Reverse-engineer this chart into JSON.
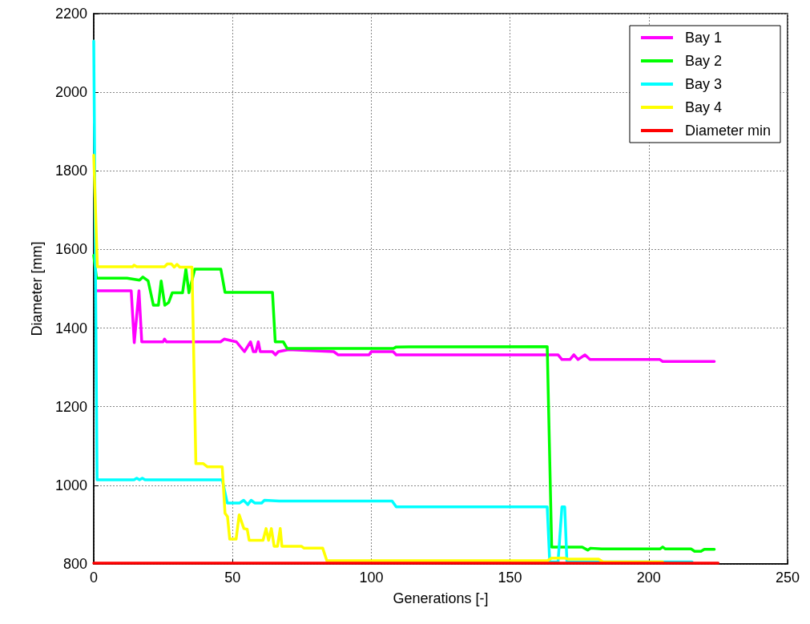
{
  "chart_data": {
    "type": "line",
    "xlabel": "Generations [-]",
    "ylabel": "Diameter [mm]",
    "xlim": [
      0,
      250
    ],
    "xticks": [
      0,
      50,
      100,
      150,
      200,
      250
    ],
    "ylim": [
      800,
      2200
    ],
    "yticks": [
      800,
      1000,
      1200,
      1400,
      1600,
      1800,
      2000,
      2200
    ],
    "grid": true,
    "legend": "top right",
    "marker": "none",
    "line_style": "solid",
    "series": [
      {
        "name": "Bay 1",
        "color": "#ff00ff",
        "x": [
          1,
          13.5,
          14.6,
          16.3,
          17.3,
          25,
          25.5,
          26.2,
          45.7,
          47,
          51.4,
          54.3,
          56.5,
          57.5,
          58.4,
          59.3,
          60,
          61,
          64.4,
          65.5,
          66.5,
          70.2,
          86.5,
          88,
          99.2,
          100,
          107.9,
          109,
          167.3,
          168.7,
          171.6,
          173,
          174.5,
          177,
          178.8,
          204,
          205,
          223.6
        ],
        "values": [
          1495,
          1495,
          1363,
          1495,
          1365,
          1365,
          1372,
          1365,
          1365,
          1372,
          1365,
          1340,
          1365,
          1340,
          1340,
          1365,
          1340,
          1340,
          1340,
          1332,
          1340,
          1345,
          1340,
          1332,
          1332,
          1340,
          1340,
          1332,
          1332,
          1320,
          1320,
          1332,
          1320,
          1332,
          1320,
          1320,
          1315,
          1315
        ]
      },
      {
        "name": "Bay 2",
        "color": "#00ff00",
        "x": [
          0,
          1,
          12,
          16.5,
          17.7,
          19.6,
          21.5,
          23.3,
          24.3,
          25.6,
          27,
          28.3,
          32,
          33.2,
          34.3,
          36.4,
          45.8,
          47.3,
          64.4,
          65.4,
          68.3,
          69.7,
          108,
          109,
          163.4,
          165,
          176,
          178,
          179,
          183,
          204,
          205,
          206,
          215.3,
          216.5,
          218.8,
          220,
          223.6
        ],
        "values": [
          1585,
          1527,
          1527,
          1522,
          1530,
          1520,
          1458,
          1458,
          1520,
          1458,
          1465,
          1490,
          1490,
          1550,
          1490,
          1550,
          1550,
          1491,
          1491,
          1365,
          1365,
          1348,
          1348,
          1352,
          1353,
          843,
          843,
          835,
          840,
          838,
          838,
          843,
          838,
          838,
          832,
          832,
          837,
          837
        ]
      },
      {
        "name": "Bay 3",
        "color": "#00ffff",
        "x": [
          0,
          1.2,
          14.5,
          15.5,
          16.5,
          17.5,
          18.5,
          19.5,
          46.3,
          48.1,
          52.6,
          54,
          55.5,
          56.7,
          58,
          60.5,
          61.5,
          66.8,
          107.5,
          109,
          163.4,
          164.3,
          167.3,
          168.7,
          169.7,
          170.5,
          215.6
        ],
        "values": [
          2130,
          1014,
          1014,
          1018,
          1014,
          1018,
          1014,
          1014,
          1014,
          955,
          955,
          962,
          951,
          962,
          955,
          955,
          962,
          960,
          960,
          945,
          945,
          805,
          805,
          945,
          945,
          805,
          805
        ]
      },
      {
        "name": "Bay 4",
        "color": "#ffff00",
        "x": [
          0,
          1.3,
          14,
          14.5,
          15.5,
          25.5,
          26.5,
          28,
          29,
          30,
          31,
          35.4,
          36.8,
          39.5,
          41,
          46.3,
          47.3,
          48.2,
          49,
          51.3,
          52.4,
          54.1,
          55.3,
          56,
          61,
          62.1,
          63,
          64,
          65,
          66.2,
          67.2,
          67.8,
          74.8,
          75.8,
          82.5,
          84,
          163.4,
          165,
          169.7,
          171,
          182,
          183.5,
          205
        ],
        "values": [
          1840,
          1556,
          1556,
          1560,
          1556,
          1556,
          1563,
          1563,
          1555,
          1562,
          1555,
          1555,
          1055,
          1055,
          1047,
          1047,
          929,
          920,
          863,
          863,
          925,
          890,
          888,
          860,
          860,
          890,
          860,
          890,
          845,
          845,
          890,
          845,
          845,
          840,
          840,
          808,
          808,
          815,
          815,
          812,
          812,
          805,
          805
        ]
      },
      {
        "name": "Diameter min",
        "color": "#ff0000",
        "x": [
          0,
          225
        ],
        "values": [
          802,
          802
        ]
      }
    ]
  }
}
